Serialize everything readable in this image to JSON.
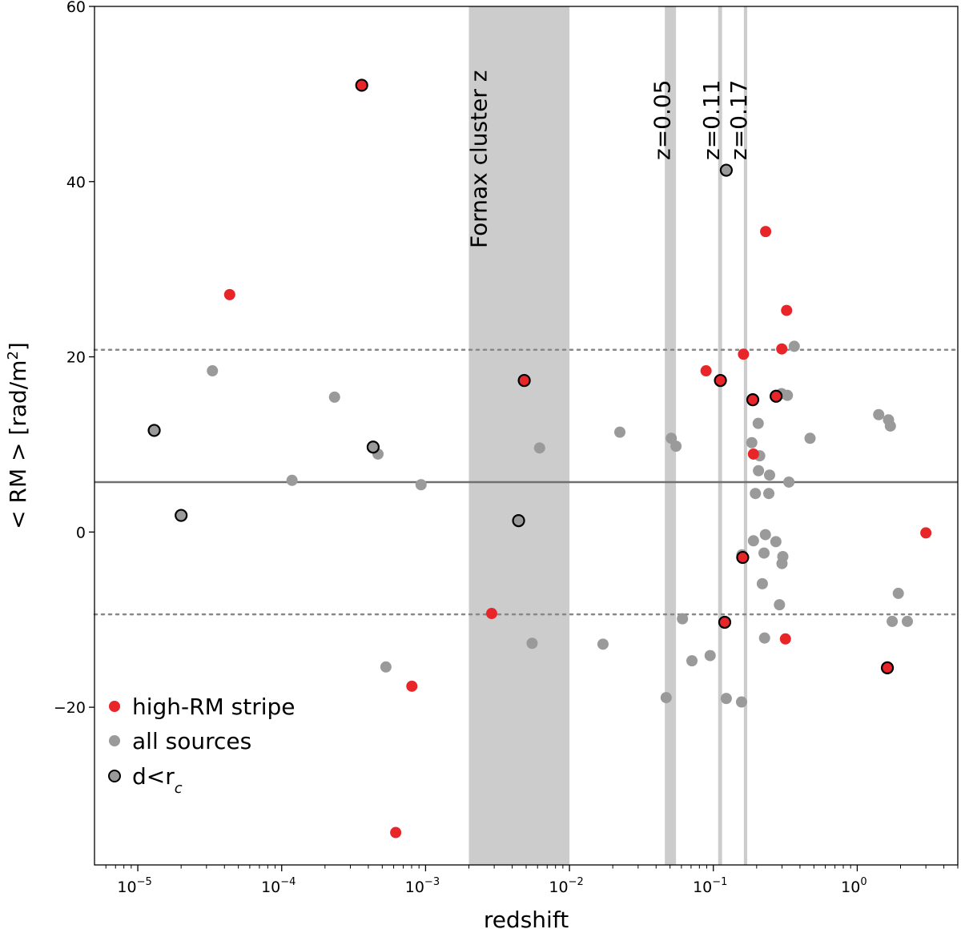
{
  "chart_data": {
    "type": "scatter",
    "title": "",
    "xlabel": "redshift",
    "ylabel_main": "< RM >  [rad/m",
    "ylabel_sup": "2",
    "ylabel_tail": "]",
    "xscale": "log",
    "xlim": [
      5e-06,
      5.0
    ],
    "ylim": [
      -38,
      60
    ],
    "yticks": [
      -20,
      0,
      20,
      40,
      60
    ],
    "ytick_labels": [
      "−20",
      "0",
      "20",
      "40",
      "60"
    ],
    "xticks": [
      1e-05,
      0.0001,
      0.001,
      0.01,
      0.1,
      1
    ],
    "xtick_labels": [
      {
        "base": "10",
        "exp": "−5"
      },
      {
        "base": "10",
        "exp": "−4"
      },
      {
        "base": "10",
        "exp": "−3"
      },
      {
        "base": "10",
        "exp": "−2"
      },
      {
        "base": "10",
        "exp": "−1"
      },
      {
        "base": "10",
        "exp": "0"
      }
    ],
    "hlines": [
      {
        "y": 5.7,
        "style": "solid"
      },
      {
        "y": 20.8,
        "style": "dotted"
      },
      {
        "y": -9.4,
        "style": "dotted"
      }
    ],
    "bands": [
      {
        "x0": 0.002,
        "x1": 0.01,
        "label": "Fornax cluster z"
      },
      {
        "x0": 0.046,
        "x1": 0.055,
        "label": "z=0.05"
      },
      {
        "x0": 0.108,
        "x1": 0.115,
        "label": "z=0.11"
      },
      {
        "x0": 0.163,
        "x1": 0.172,
        "label": "z=0.17"
      }
    ],
    "legend": {
      "position": "lower-left",
      "entries": [
        {
          "label": "high-RM stripe",
          "marker": "red"
        },
        {
          "label": "all sources",
          "marker": "gray"
        },
        {
          "label_main": "d<r",
          "label_sub": "c",
          "marker": "gray-outlined"
        }
      ]
    },
    "series": [
      {
        "key": "gray",
        "points": [
          [
            3.3e-05,
            18.4
          ],
          [
            0.000233,
            15.4
          ],
          [
            0.000118,
            5.9
          ],
          [
            0.000467,
            8.9
          ],
          [
            0.00093,
            5.4
          ],
          [
            0.0062,
            9.6
          ],
          [
            0.0224,
            11.4
          ],
          [
            0.00053,
            -15.4
          ],
          [
            0.0055,
            -12.7
          ],
          [
            0.0171,
            -12.8
          ],
          [
            0.051,
            10.7
          ],
          [
            0.055,
            9.8
          ],
          [
            0.061,
            -9.9
          ],
          [
            0.071,
            -14.7
          ],
          [
            0.095,
            -14.1
          ],
          [
            0.123,
            -19.0
          ],
          [
            0.047,
            -18.9
          ],
          [
            0.157,
            -19.4
          ],
          [
            0.158,
            -2.6
          ],
          [
            0.19,
            -1.0
          ],
          [
            0.205,
            12.4
          ],
          [
            0.196,
            4.4
          ],
          [
            0.21,
            8.7
          ],
          [
            0.206,
            7.0
          ],
          [
            0.23,
            -0.3
          ],
          [
            0.225,
            -2.4
          ],
          [
            0.219,
            -5.9
          ],
          [
            0.243,
            4.4
          ],
          [
            0.246,
            6.5
          ],
          [
            0.185,
            10.2
          ],
          [
            0.272,
            -1.1
          ],
          [
            0.3,
            -3.6
          ],
          [
            0.304,
            -2.8
          ],
          [
            0.288,
            -8.3
          ],
          [
            0.227,
            -12.1
          ],
          [
            0.298,
            15.8
          ],
          [
            0.327,
            15.6
          ],
          [
            0.335,
            5.7
          ],
          [
            0.365,
            21.2
          ],
          [
            0.47,
            10.7
          ],
          [
            1.41,
            13.4
          ],
          [
            1.65,
            12.8
          ],
          [
            1.7,
            12.1
          ],
          [
            1.75,
            -10.2
          ],
          [
            1.93,
            -7.0
          ],
          [
            2.23,
            -10.2
          ]
        ]
      },
      {
        "key": "red",
        "points": [
          [
            4.35e-05,
            27.1
          ],
          [
            0.000803,
            -17.6
          ],
          [
            0.00062,
            -34.3
          ],
          [
            0.00288,
            -9.3
          ],
          [
            0.089,
            18.4
          ],
          [
            0.162,
            20.3
          ],
          [
            0.231,
            34.3
          ],
          [
            0.323,
            25.3
          ],
          [
            0.299,
            20.9
          ],
          [
            0.19,
            8.9
          ],
          [
            0.317,
            -12.2
          ],
          [
            3.0,
            -0.1
          ]
        ]
      },
      {
        "key": "red-outlined",
        "points": [
          [
            0.00036,
            51.0
          ],
          [
            0.00485,
            17.3
          ],
          [
            0.112,
            17.3
          ],
          [
            0.188,
            15.1
          ],
          [
            0.273,
            15.5
          ],
          [
            0.16,
            -2.9
          ],
          [
            0.12,
            -10.3
          ],
          [
            1.62,
            -15.5
          ]
        ]
      },
      {
        "key": "gray-outlined",
        "points": [
          [
            1.3e-05,
            11.6
          ],
          [
            2e-05,
            1.9
          ],
          [
            0.000432,
            9.7
          ],
          [
            0.00443,
            1.3
          ],
          [
            0.123,
            41.3
          ]
        ]
      }
    ],
    "colors": {
      "red": "#e8262a",
      "gray": "#9a9a9a",
      "band": "#cccccc",
      "hline": "#707070"
    }
  }
}
